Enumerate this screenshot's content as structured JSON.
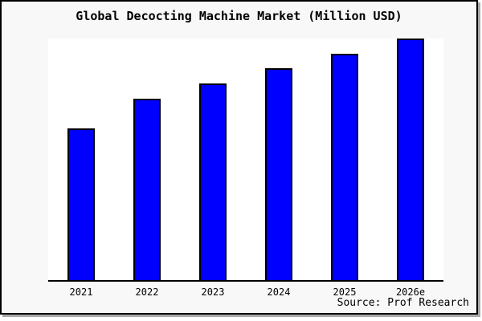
{
  "window": {
    "title": "Global Decocting Machine Market (Million USD)",
    "source_note": "Source: Prof Research"
  },
  "chart_data": {
    "type": "bar",
    "title": "Global Decocting Machine Market (Million USD)",
    "categories": [
      "2021",
      "2022",
      "2023",
      "2024",
      "2025",
      "2026e"
    ],
    "values": [
      189,
      226,
      245,
      264,
      282,
      301
    ],
    "values_unit": "relative bar height in px (chart shows no y-axis scale or tick labels)",
    "xlabel": "",
    "ylabel": "",
    "ylim": [
      0,
      303
    ],
    "grid": false,
    "legend": false,
    "bar_color": "#0000ff",
    "bar_border_color": "#000000",
    "axis_color": "#000000",
    "plot_background": "#ffffff",
    "page_background": "#f8f8f8",
    "source_note": "Source: Prof Research"
  }
}
